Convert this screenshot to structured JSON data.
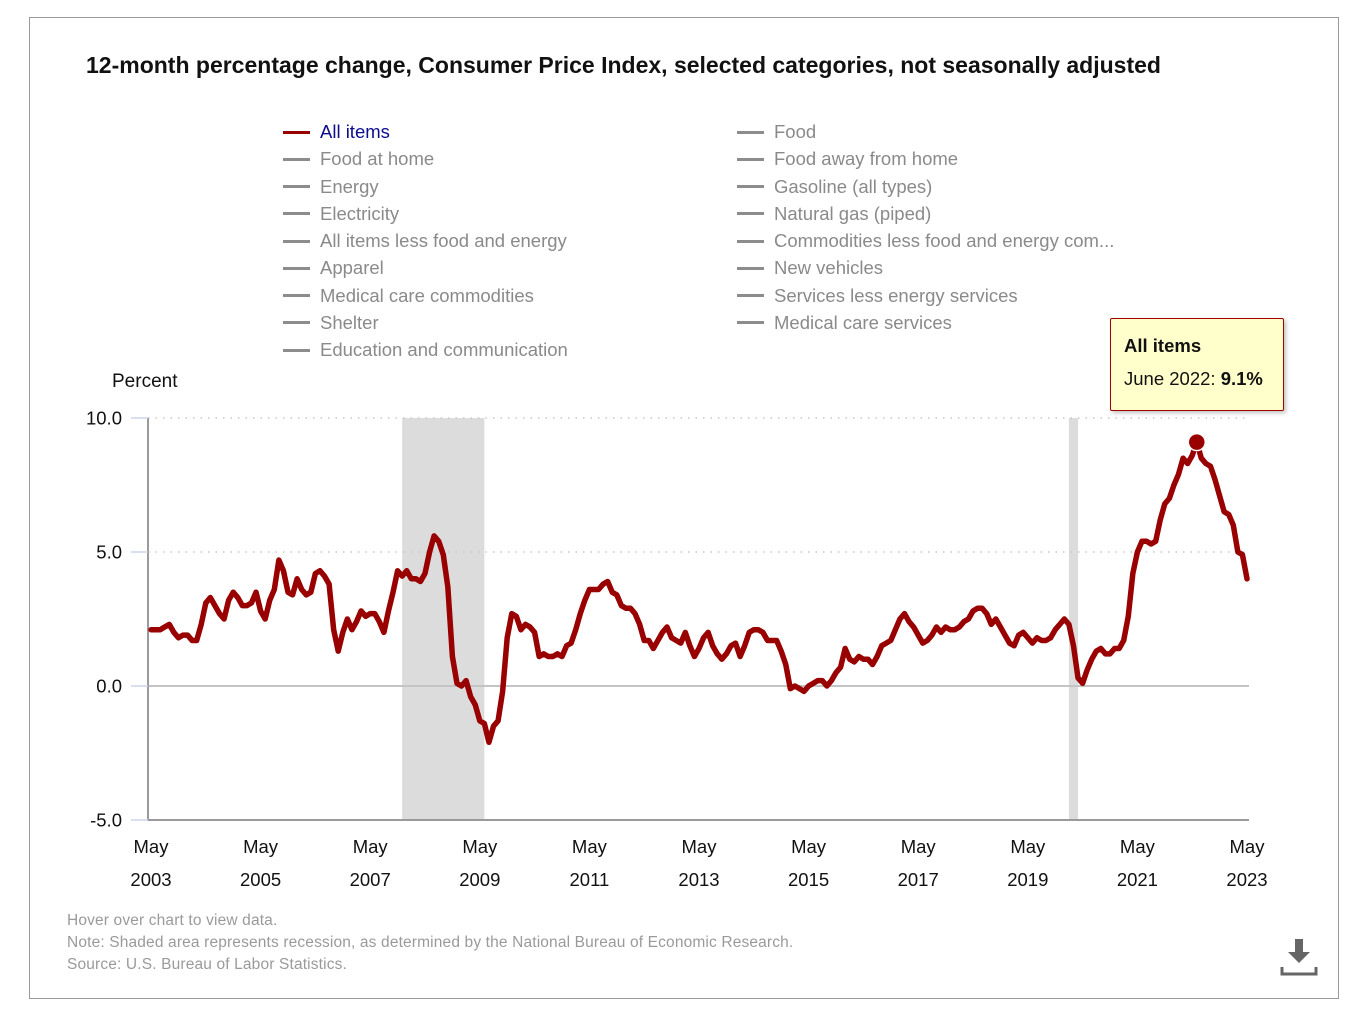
{
  "title": "12-month percentage change, Consumer Price Index, selected categories, not seasonally adjusted",
  "legend": {
    "left_column": [
      {
        "label": "All items",
        "active": true
      },
      {
        "label": "Food at home",
        "active": false
      },
      {
        "label": "Energy",
        "active": false
      },
      {
        "label": "Electricity",
        "active": false
      },
      {
        "label": "All items less food and energy",
        "active": false
      },
      {
        "label": "Apparel",
        "active": false
      },
      {
        "label": "Medical care commodities",
        "active": false
      },
      {
        "label": "Shelter",
        "active": false
      },
      {
        "label": "Education and communication",
        "active": false
      }
    ],
    "right_column": [
      {
        "label": "Food",
        "active": false
      },
      {
        "label": "Food away from home",
        "active": false
      },
      {
        "label": "Gasoline (all types)",
        "active": false
      },
      {
        "label": "Natural gas (piped)",
        "active": false
      },
      {
        "label": "Commodities less food and energy com...",
        "active": false
      },
      {
        "label": "New vehicles",
        "active": false
      },
      {
        "label": "Services less energy services",
        "active": false
      },
      {
        "label": "Medical care services",
        "active": false
      }
    ]
  },
  "tooltip": {
    "title": "All items",
    "date_label": "June 2022: ",
    "value_label": "9.1%"
  },
  "footer": {
    "hover_hint": "Hover over chart to view data.",
    "note": "Note: Shaded area represents recession, as determined by the National Bureau of Economic Research.",
    "source": "Source: U.S. Bureau of Labor Statistics."
  },
  "icons": {
    "download": "download-icon"
  },
  "colors": {
    "active_series": "#990000",
    "inactive_series": "#8c8c8c",
    "active_legend_text": "#0c0c8c",
    "recession_shade": "#dcdcdc",
    "tooltip_background": "#ffffcc"
  },
  "chart_data": {
    "type": "line",
    "title": "12-month percentage change, Consumer Price Index, selected categories, not seasonally adjusted",
    "ylabel": "Percent",
    "xlabel": "",
    "ylim": [
      -5,
      10
    ],
    "y_ticks": [
      {
        "value": -5,
        "label": "-5.0"
      },
      {
        "value": 0,
        "label": "0.0"
      },
      {
        "value": 5,
        "label": "5.0"
      },
      {
        "value": 10,
        "label": "10.0"
      }
    ],
    "grid": true,
    "x_start": "2003-05",
    "x_end": "2023-05",
    "frequency": "monthly",
    "x_ticks": [
      {
        "at": "2003-05",
        "month": "May",
        "year": "2003"
      },
      {
        "at": "2005-05",
        "month": "May",
        "year": "2005"
      },
      {
        "at": "2007-05",
        "month": "May",
        "year": "2007"
      },
      {
        "at": "2009-05",
        "month": "May",
        "year": "2009"
      },
      {
        "at": "2011-05",
        "month": "May",
        "year": "2011"
      },
      {
        "at": "2013-05",
        "month": "May",
        "year": "2013"
      },
      {
        "at": "2015-05",
        "month": "May",
        "year": "2015"
      },
      {
        "at": "2017-05",
        "month": "May",
        "year": "2017"
      },
      {
        "at": "2019-05",
        "month": "May",
        "year": "2019"
      },
      {
        "at": "2021-05",
        "month": "May",
        "year": "2021"
      },
      {
        "at": "2023-05",
        "month": "May",
        "year": "2023"
      }
    ],
    "recessions": [
      {
        "start": "2007-12",
        "end": "2009-06"
      },
      {
        "start": "2020-02",
        "end": "2020-04"
      }
    ],
    "highlight": {
      "series": "All items",
      "date": "2022-06",
      "value": 9.1
    },
    "legend_position": "top",
    "series": [
      {
        "name": "All items",
        "values": [
          2.1,
          2.1,
          2.1,
          2.2,
          2.3,
          2.0,
          1.8,
          1.9,
          1.9,
          1.7,
          1.7,
          2.3,
          3.1,
          3.3,
          3.0,
          2.7,
          2.5,
          3.2,
          3.5,
          3.3,
          3.0,
          3.0,
          3.1,
          3.5,
          2.8,
          2.5,
          3.2,
          3.6,
          4.7,
          4.3,
          3.5,
          3.4,
          4.0,
          3.6,
          3.4,
          3.5,
          4.2,
          4.3,
          4.1,
          3.8,
          2.1,
          1.3,
          2.0,
          2.5,
          2.1,
          2.4,
          2.8,
          2.6,
          2.7,
          2.7,
          2.4,
          2.0,
          2.8,
          3.5,
          4.3,
          4.1,
          4.3,
          4.0,
          4.0,
          3.9,
          4.2,
          5.0,
          5.6,
          5.4,
          4.9,
          3.7,
          1.1,
          0.1,
          0.0,
          0.2,
          -0.4,
          -0.7,
          -1.3,
          -1.4,
          -2.1,
          -1.5,
          -1.3,
          -0.2,
          1.8,
          2.7,
          2.6,
          2.1,
          2.3,
          2.2,
          2.0,
          1.1,
          1.2,
          1.1,
          1.1,
          1.2,
          1.1,
          1.5,
          1.6,
          2.1,
          2.7,
          3.2,
          3.6,
          3.6,
          3.6,
          3.8,
          3.9,
          3.5,
          3.4,
          3.0,
          2.9,
          2.9,
          2.7,
          2.3,
          1.7,
          1.7,
          1.4,
          1.7,
          2.0,
          2.2,
          1.8,
          1.7,
          1.6,
          2.0,
          1.5,
          1.1,
          1.4,
          1.8,
          2.0,
          1.5,
          1.2,
          1.0,
          1.2,
          1.5,
          1.6,
          1.1,
          1.5,
          2.0,
          2.1,
          2.1,
          2.0,
          1.7,
          1.7,
          1.7,
          1.3,
          0.8,
          -0.1,
          0.0,
          -0.1,
          -0.2,
          0.0,
          0.1,
          0.2,
          0.2,
          0.0,
          0.2,
          0.5,
          0.7,
          1.4,
          1.0,
          0.9,
          1.1,
          1.0,
          1.0,
          0.8,
          1.1,
          1.5,
          1.6,
          1.7,
          2.1,
          2.5,
          2.7,
          2.4,
          2.2,
          1.9,
          1.6,
          1.7,
          1.9,
          2.2,
          2.0,
          2.2,
          2.1,
          2.1,
          2.2,
          2.4,
          2.5,
          2.8,
          2.9,
          2.9,
          2.7,
          2.3,
          2.5,
          2.2,
          1.9,
          1.6,
          1.5,
          1.9,
          2.0,
          1.8,
          1.6,
          1.8,
          1.7,
          1.7,
          1.8,
          2.1,
          2.3,
          2.5,
          2.3,
          1.5,
          0.3,
          0.1,
          0.6,
          1.0,
          1.3,
          1.4,
          1.2,
          1.2,
          1.4,
          1.4,
          1.7,
          2.6,
          4.2,
          5.0,
          5.4,
          5.4,
          5.3,
          5.4,
          6.2,
          6.8,
          7.0,
          7.5,
          7.9,
          8.5,
          8.3,
          8.6,
          9.1,
          8.5,
          8.3,
          8.2,
          7.7,
          7.1,
          6.5,
          6.4,
          6.0,
          5.0,
          4.9,
          4.0
        ]
      }
    ]
  }
}
